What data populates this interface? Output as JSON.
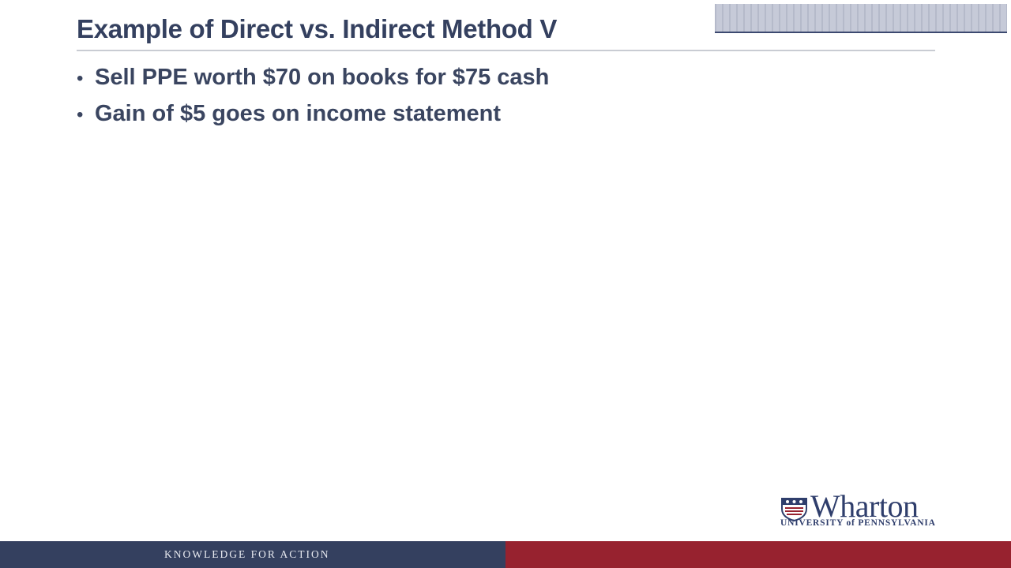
{
  "slide": {
    "title": "Example of Direct vs. Indirect Method V",
    "bullets": [
      "Sell PPE worth $70 on books for $75 cash",
      "Gain of $5 goes on income statement"
    ],
    "bullet_symbol": "•"
  },
  "logo": {
    "name": "Wharton",
    "subtitle": "UNIVERSITY of PENNSYLVANIA",
    "icon": "penn-shield-icon"
  },
  "footer": {
    "tagline": "KNOWLEDGE FOR ACTION",
    "colors": {
      "left": "#34405f",
      "right": "#97222f"
    }
  },
  "colors": {
    "title": "#34405f",
    "body_text": "#3a4560",
    "brand_blue": "#2f3e6c",
    "brand_red": "#97222f"
  }
}
